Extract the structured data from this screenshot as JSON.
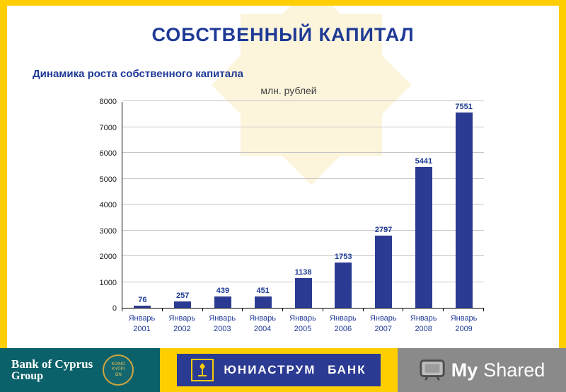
{
  "slide": {
    "title": "СОБСТВЕННЫЙ КАПИТАЛ",
    "subtitle": "Динамика роста собственного капитала",
    "units_label": "млн. рублей"
  },
  "chart_data": {
    "type": "bar",
    "title": "Динамика роста собственного капитала",
    "xlabel": "",
    "ylabel": "млн. рублей",
    "categories": [
      "Январь 2001",
      "Январь 2002",
      "Январь 2003",
      "Январь 2004",
      "Январь 2005",
      "Январь 2006",
      "Январь 2007",
      "Январь 2008",
      "Январь 2009"
    ],
    "values": [
      76,
      257,
      439,
      451,
      1138,
      1753,
      2797,
      5441,
      7551
    ],
    "ylim": [
      0,
      8000
    ],
    "yticks": [
      0,
      1000,
      2000,
      3000,
      4000,
      5000,
      6000,
      7000,
      8000
    ],
    "grid": true,
    "legend": "none",
    "bar_color": "#2B3A92",
    "value_label_color": "#1E3A96"
  },
  "footer": {
    "bank_of_cyprus": {
      "line1": "Bank of Cyprus",
      "line2": "Group",
      "emblem_line1": "KOINO",
      "emblem_line2": "KYΠPI",
      "emblem_line3": "ΩN"
    },
    "uniastrum": {
      "label": "ЮНИАСТРУМ БАНК"
    },
    "myshared": {
      "my": "My",
      "shared": "Shared"
    }
  },
  "colors": {
    "accent_yellow": "#FFCE00",
    "navy": "#2B3A92",
    "title_blue": "#1E3A96",
    "teal": "#0B6169",
    "watermark_gray": "#8A8A8A"
  }
}
